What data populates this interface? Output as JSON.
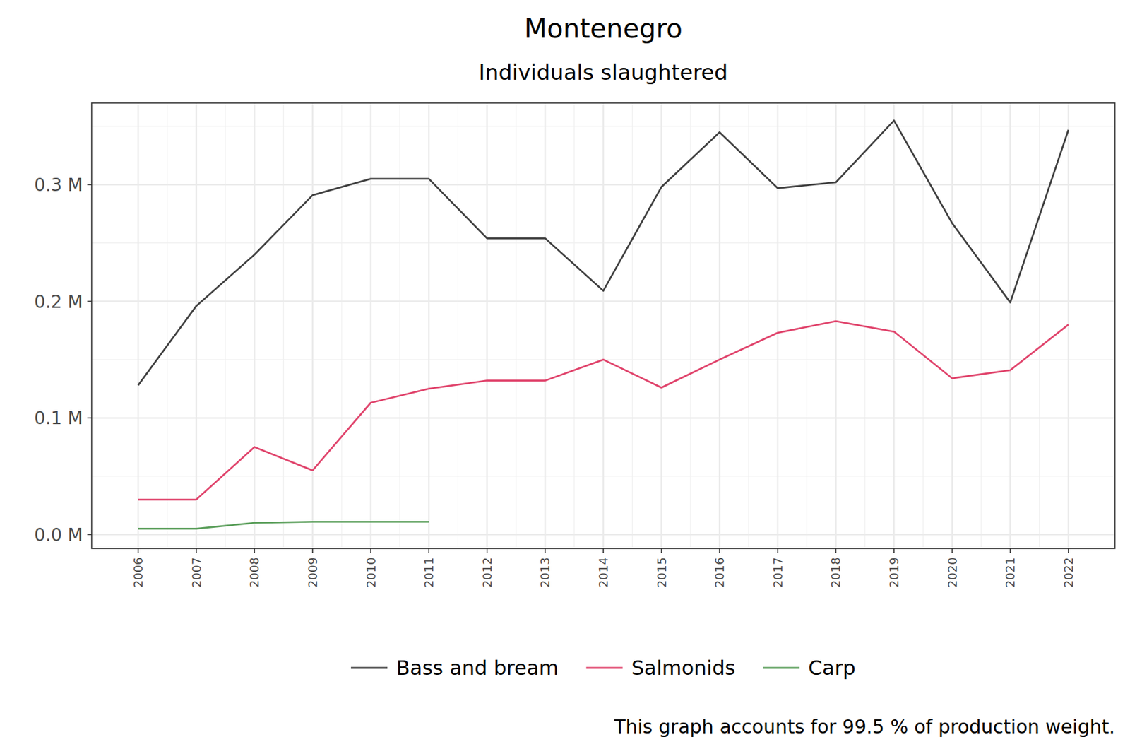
{
  "chart_data": {
    "type": "line",
    "title": "Montenegro",
    "subtitle": "Individuals slaughtered",
    "caption": "This graph accounts for 99.5 % of production weight.",
    "x": [
      2006,
      2007,
      2008,
      2009,
      2010,
      2011,
      2012,
      2013,
      2014,
      2015,
      2016,
      2017,
      2018,
      2019,
      2020,
      2021,
      2022
    ],
    "series": [
      {
        "name": "Bass and bream",
        "color": "#404040",
        "values": [
          0.128,
          0.196,
          0.24,
          0.291,
          0.305,
          0.305,
          0.254,
          0.254,
          0.209,
          0.298,
          0.345,
          0.297,
          0.302,
          0.355,
          0.267,
          0.199,
          0.347
        ]
      },
      {
        "name": "Salmonids",
        "color": "#e0446c",
        "values": [
          0.03,
          0.03,
          0.075,
          0.055,
          0.113,
          0.125,
          0.132,
          0.132,
          0.15,
          0.126,
          0.15,
          0.173,
          0.183,
          0.174,
          0.134,
          0.141,
          0.18
        ]
      },
      {
        "name": "Carp",
        "color": "#5a9e5a",
        "values": [
          0.005,
          0.005,
          0.01,
          0.011,
          0.011,
          0.011,
          null,
          null,
          null,
          null,
          null,
          null,
          null,
          null,
          null,
          null,
          null
        ]
      }
    ],
    "xlim": [
      2005.2,
      2022.8
    ],
    "xticks": [
      2006,
      2007,
      2008,
      2009,
      2010,
      2011,
      2012,
      2013,
      2014,
      2015,
      2016,
      2017,
      2018,
      2019,
      2020,
      2021,
      2022
    ],
    "ylim": [
      -0.012,
      0.37
    ],
    "yticks": [
      {
        "value": 0,
        "label": "0.0 M"
      },
      {
        "value": 0.1,
        "label": "0.1 M"
      },
      {
        "value": 0.2,
        "label": "0.2 M"
      },
      {
        "value": 0.3,
        "label": "0.3 M"
      }
    ],
    "grid": true,
    "legend": "bottom"
  }
}
